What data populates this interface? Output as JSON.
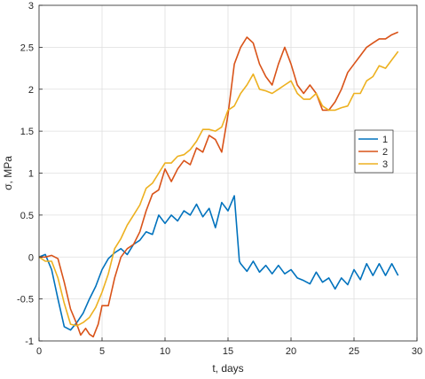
{
  "chart_data": {
    "type": "line",
    "title": "",
    "xlabel": "t, days",
    "ylabel": "σ, MPa",
    "xlim": [
      0,
      30
    ],
    "ylim": [
      -1,
      3
    ],
    "x_ticks": [
      0,
      5,
      10,
      15,
      20,
      25,
      30
    ],
    "y_ticks": [
      -1,
      -0.5,
      0,
      0.5,
      1,
      1.5,
      2,
      2.5,
      3
    ],
    "x_tick_labels": [
      "0",
      "5",
      "10",
      "15",
      "20",
      "25",
      "30"
    ],
    "y_tick_labels": [
      "-1",
      "-0.5",
      "0",
      "0.5",
      "1",
      "1.5",
      "2",
      "2.5",
      "3"
    ],
    "grid": true,
    "legend_position": "right-center",
    "series": [
      {
        "name": "1",
        "color": "#0072BD",
        "x": [
          0,
          0.5,
          1.0,
          1.5,
          2.0,
          2.5,
          3.0,
          3.5,
          4.0,
          4.5,
          5.0,
          5.5,
          6.0,
          6.5,
          7.0,
          7.5,
          8.0,
          8.5,
          9.0,
          9.5,
          10.0,
          10.5,
          11.0,
          11.5,
          12.0,
          12.5,
          13.0,
          13.5,
          14.0,
          14.5,
          15.0,
          15.5,
          15.9,
          16.0,
          16.5,
          17.0,
          17.5,
          18.0,
          18.5,
          19.0,
          19.5,
          20.0,
          20.5,
          21.0,
          21.5,
          22.0,
          22.5,
          23.0,
          23.5,
          24.0,
          24.5,
          25.0,
          25.5,
          26.0,
          26.5,
          27.0,
          27.5,
          28.0,
          28.5
        ],
        "y": [
          0.0,
          0.03,
          -0.15,
          -0.5,
          -0.83,
          -0.87,
          -0.78,
          -0.67,
          -0.5,
          -0.35,
          -0.15,
          -0.02,
          0.05,
          0.1,
          0.03,
          0.15,
          0.2,
          0.3,
          0.27,
          0.5,
          0.4,
          0.5,
          0.43,
          0.55,
          0.5,
          0.63,
          0.48,
          0.58,
          0.35,
          0.65,
          0.55,
          0.73,
          -0.05,
          -0.08,
          -0.17,
          -0.05,
          -0.18,
          -0.1,
          -0.2,
          -0.1,
          -0.2,
          -0.15,
          -0.25,
          -0.28,
          -0.32,
          -0.18,
          -0.3,
          -0.25,
          -0.38,
          -0.25,
          -0.33,
          -0.15,
          -0.27,
          -0.08,
          -0.22,
          -0.08,
          -0.22,
          -0.08,
          -0.22
        ],
        "y_end": -0.08
      },
      {
        "name": "2",
        "color": "#D95319",
        "x": [
          0,
          0.5,
          1.0,
          1.5,
          2.0,
          2.5,
          3.0,
          3.3,
          3.7,
          4.0,
          4.3,
          4.7,
          5.0,
          5.5,
          6.0,
          6.5,
          7.0,
          7.5,
          8.0,
          8.5,
          9.0,
          9.5,
          10.0,
          10.5,
          11.0,
          11.5,
          12.0,
          12.5,
          13.0,
          13.5,
          14.0,
          14.5,
          15.0,
          15.5,
          16.0,
          16.5,
          17.0,
          17.5,
          18.0,
          18.5,
          19.0,
          19.5,
          20.0,
          20.5,
          21.0,
          21.5,
          22.0,
          22.5,
          23.0,
          23.5,
          24.0,
          24.5,
          25.0,
          25.5,
          26.0,
          26.5,
          27.0,
          27.5,
          28.0,
          28.5
        ],
        "y": [
          0.0,
          0.0,
          0.02,
          -0.02,
          -0.3,
          -0.62,
          -0.8,
          -0.93,
          -0.85,
          -0.92,
          -0.95,
          -0.8,
          -0.58,
          -0.58,
          -0.25,
          0.0,
          0.1,
          0.15,
          0.3,
          0.55,
          0.75,
          0.8,
          1.05,
          0.9,
          1.05,
          1.15,
          1.1,
          1.3,
          1.25,
          1.45,
          1.4,
          1.25,
          1.7,
          2.3,
          2.5,
          2.62,
          2.55,
          2.3,
          2.15,
          2.05,
          2.3,
          2.5,
          2.3,
          2.05,
          1.95,
          2.05,
          1.95,
          1.75,
          1.75,
          1.85,
          2.0,
          2.2,
          2.3,
          2.4,
          2.5,
          2.55,
          2.6,
          2.6,
          2.65,
          2.68
        ],
        "y_end": 2.68
      },
      {
        "name": "3",
        "color": "#EDB120",
        "x": [
          0,
          0.5,
          1.0,
          1.5,
          2.0,
          2.5,
          3.0,
          3.5,
          4.0,
          4.5,
          5.0,
          5.5,
          6.0,
          6.5,
          7.0,
          7.5,
          8.0,
          8.5,
          9.0,
          9.5,
          10.0,
          10.5,
          11.0,
          11.5,
          12.0,
          12.5,
          13.0,
          13.5,
          14.0,
          14.5,
          15.0,
          15.5,
          16.0,
          16.5,
          17.0,
          17.5,
          18.0,
          18.5,
          19.0,
          19.5,
          20.0,
          20.5,
          21.0,
          21.5,
          22.0,
          22.5,
          23.0,
          23.5,
          24.0,
          24.5,
          25.0,
          25.5,
          26.0,
          26.5,
          27.0,
          27.5,
          28.0,
          28.5
        ],
        "y": [
          0.0,
          -0.05,
          -0.05,
          -0.25,
          -0.55,
          -0.8,
          -0.82,
          -0.78,
          -0.72,
          -0.6,
          -0.42,
          -0.2,
          0.1,
          0.22,
          0.38,
          0.5,
          0.62,
          0.82,
          0.88,
          1.0,
          1.12,
          1.12,
          1.2,
          1.22,
          1.28,
          1.38,
          1.52,
          1.52,
          1.5,
          1.55,
          1.75,
          1.8,
          1.95,
          2.05,
          2.18,
          2.0,
          1.98,
          1.95,
          2.0,
          2.05,
          2.1,
          1.95,
          1.88,
          1.88,
          1.95,
          1.8,
          1.75,
          1.75,
          1.78,
          1.8,
          1.95,
          1.95,
          2.1,
          2.15,
          2.28,
          2.25,
          2.35,
          2.45
        ],
        "y_end": 2.45
      }
    ]
  }
}
